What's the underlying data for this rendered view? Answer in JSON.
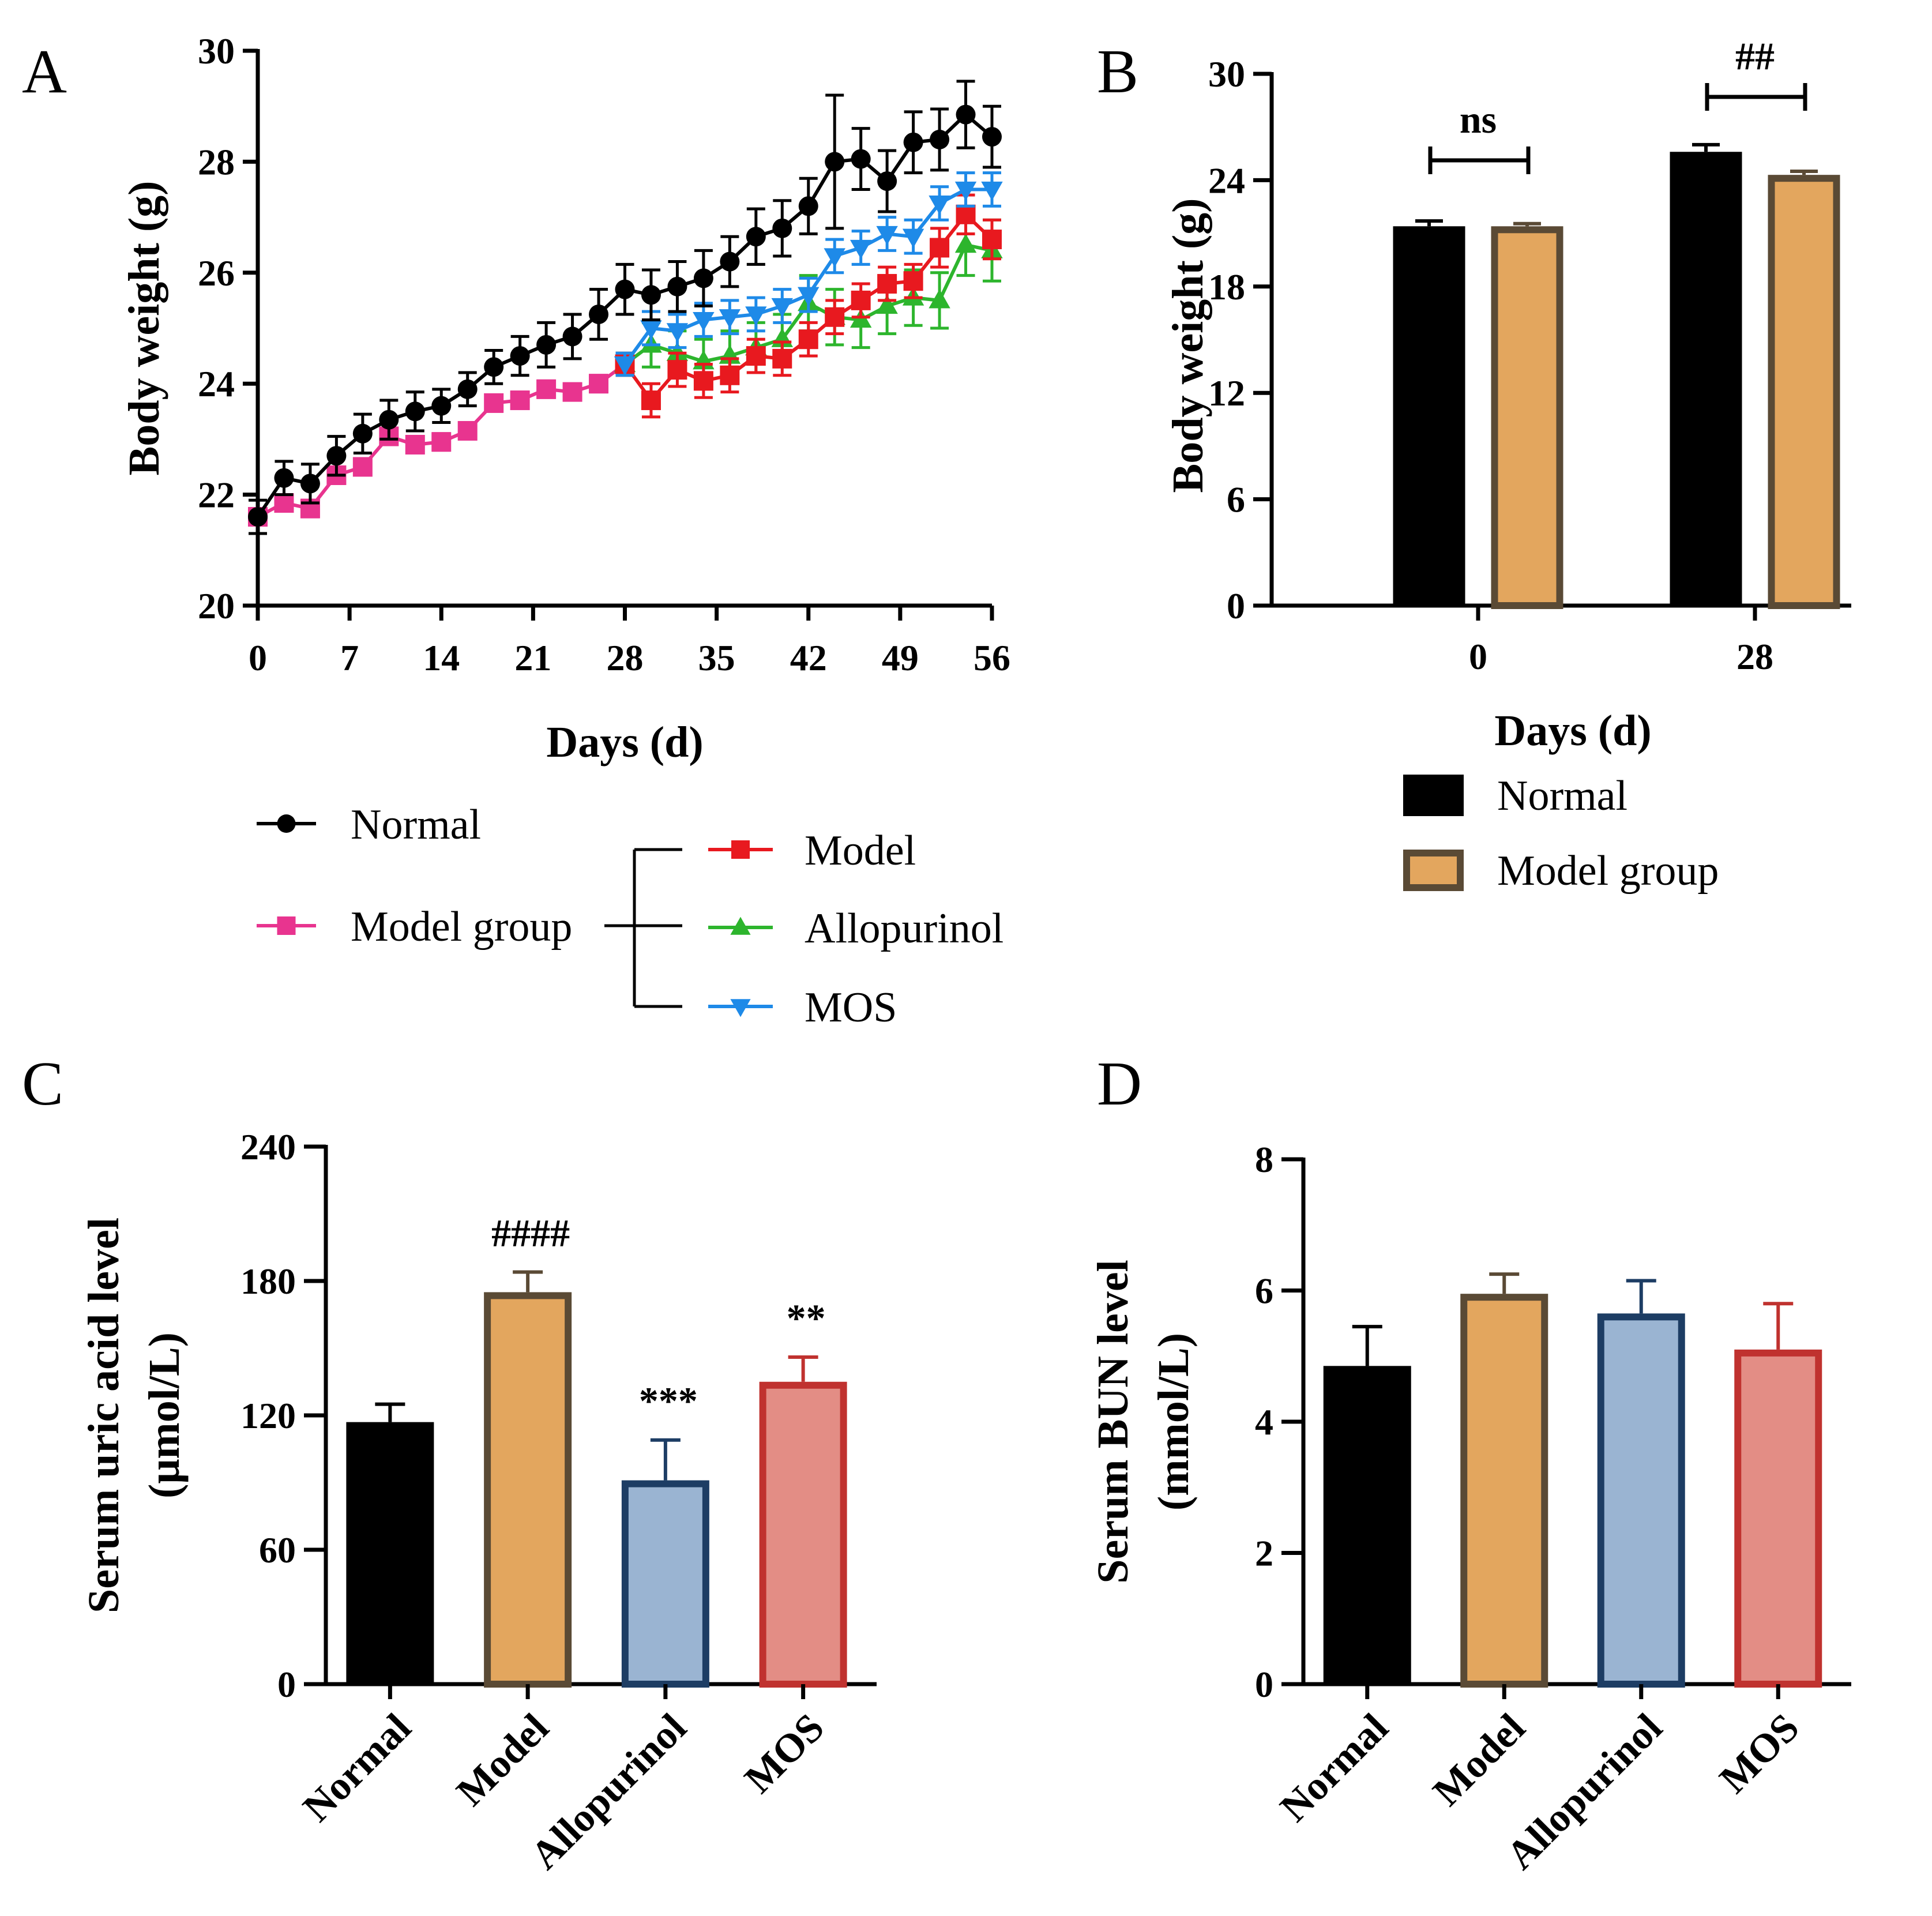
{
  "panels": {
    "A": "A",
    "B": "B",
    "C": "C",
    "D": "D"
  },
  "chart_data": [
    {
      "panel": "A",
      "type": "line",
      "xlabel": "Days (d)",
      "ylabel": "Body weight (g)",
      "xlim": [
        0,
        56
      ],
      "ylim": [
        20,
        30
      ],
      "xticks": [
        0,
        7,
        14,
        21,
        28,
        35,
        42,
        49,
        56
      ],
      "yticks": [
        20,
        22,
        24,
        26,
        28,
        30
      ],
      "series": [
        {
          "name": "Normal",
          "color": "#000000",
          "marker": "circle",
          "x": [
            0,
            2,
            4,
            6,
            8,
            10,
            12,
            14,
            16,
            18,
            20,
            22,
            24,
            26,
            28,
            30,
            32,
            34,
            36,
            38,
            40,
            42,
            44,
            46,
            48,
            50,
            52,
            54,
            56
          ],
          "y": [
            21.6,
            22.3,
            22.2,
            22.7,
            23.1,
            23.35,
            23.5,
            23.6,
            23.9,
            24.3,
            24.5,
            24.7,
            24.85,
            25.25,
            25.7,
            25.6,
            25.75,
            25.9,
            26.2,
            26.65,
            26.8,
            27.2,
            28.0,
            28.05,
            27.65,
            28.35,
            28.4,
            28.85,
            28.45
          ],
          "error": [
            0.3,
            0.3,
            0.35,
            0.35,
            0.35,
            0.35,
            0.35,
            0.3,
            0.3,
            0.3,
            0.35,
            0.4,
            0.4,
            0.45,
            0.45,
            0.45,
            0.45,
            0.5,
            0.45,
            0.5,
            0.5,
            0.5,
            1.2,
            0.55,
            0.55,
            0.55,
            0.55,
            0.6,
            0.55
          ]
        },
        {
          "name": "Model group",
          "color": "#E8348F",
          "marker": "square",
          "x": [
            0,
            2,
            4,
            6,
            8,
            10,
            12,
            14,
            16,
            18,
            20,
            22,
            24,
            26,
            28
          ],
          "y": [
            21.6,
            21.85,
            21.75,
            22.35,
            22.5,
            23.05,
            22.9,
            22.95,
            23.15,
            23.65,
            23.7,
            23.9,
            23.85,
            24.0,
            24.35
          ],
          "error": [
            0.15,
            0.15,
            0.15,
            0.15,
            0.15,
            0.15,
            0.15,
            0.15,
            0.15,
            0.15,
            0.15,
            0.15,
            0.15,
            0.15,
            0.15
          ]
        },
        {
          "name": "Model",
          "color": "#E8191F",
          "marker": "square",
          "x": [
            28,
            30,
            32,
            34,
            36,
            38,
            40,
            42,
            44,
            46,
            48,
            50,
            52,
            54,
            56
          ],
          "y": [
            24.35,
            23.7,
            24.25,
            24.05,
            24.15,
            24.5,
            24.45,
            24.8,
            25.2,
            25.5,
            25.8,
            25.85,
            26.45,
            27.05,
            26.6
          ],
          "error": [
            0.2,
            0.3,
            0.3,
            0.3,
            0.3,
            0.3,
            0.3,
            0.3,
            0.3,
            0.3,
            0.3,
            0.3,
            0.35,
            0.35,
            0.35
          ]
        },
        {
          "name": "Allopurinol",
          "color": "#2DB52D",
          "marker": "triangle-up",
          "x": [
            28,
            30,
            32,
            34,
            36,
            38,
            40,
            42,
            44,
            46,
            48,
            50,
            52,
            54,
            56
          ],
          "y": [
            24.35,
            24.7,
            24.55,
            24.4,
            24.5,
            24.65,
            24.8,
            25.45,
            25.2,
            25.15,
            25.4,
            25.55,
            25.5,
            26.5,
            26.4
          ],
          "error": [
            0.2,
            0.4,
            0.4,
            0.4,
            0.45,
            0.45,
            0.45,
            0.5,
            0.5,
            0.5,
            0.5,
            0.5,
            0.5,
            0.55,
            0.55
          ]
        },
        {
          "name": "MOS",
          "color": "#1E8AE8",
          "marker": "triangle-down",
          "x": [
            28,
            30,
            32,
            34,
            36,
            38,
            40,
            42,
            44,
            46,
            48,
            50,
            52,
            54,
            56
          ],
          "y": [
            24.35,
            25.0,
            24.95,
            25.15,
            25.2,
            25.25,
            25.4,
            25.6,
            26.3,
            26.45,
            26.7,
            26.65,
            27.25,
            27.5,
            27.5
          ],
          "error": [
            0.2,
            0.3,
            0.3,
            0.3,
            0.3,
            0.3,
            0.3,
            0.3,
            0.3,
            0.3,
            0.3,
            0.3,
            0.3,
            0.3,
            0.3
          ]
        }
      ],
      "legend": {
        "normal": "Normal",
        "model_group": "Model group",
        "model": "Model",
        "allopurinol": "Allopurinol",
        "mos": "MOS"
      }
    },
    {
      "panel": "B",
      "type": "bar",
      "xlabel": "Days (d)",
      "ylabel": "Body weight (g)",
      "categories": [
        "0",
        "28"
      ],
      "ylim": [
        0,
        30
      ],
      "yticks": [
        0,
        6,
        12,
        18,
        24,
        30
      ],
      "series": [
        {
          "name": "Normal",
          "fill": "#000000",
          "edge": "#000000",
          "values": [
            21.4,
            25.6
          ],
          "errors": [
            0.3,
            0.4
          ]
        },
        {
          "name": "Model group",
          "fill": "#E3A65E",
          "edge": "#5A4A35",
          "values": [
            21.4,
            24.3
          ],
          "errors": [
            0.15,
            0.2
          ]
        }
      ],
      "annotations": [
        "ns",
        "##"
      ],
      "legend": [
        "Normal",
        "Model group"
      ]
    },
    {
      "panel": "C",
      "type": "bar",
      "ylabel_line1": "Serum uric acid level",
      "ylabel_line2": "(μmol/L)",
      "categories": [
        "Normal",
        "Model",
        "Allopurinol",
        "MOS"
      ],
      "values": [
        117,
        175,
        91,
        135
      ],
      "errors": [
        8,
        9,
        18,
        11
      ],
      "fills": [
        "#000000",
        "#E3A65E",
        "#9AB4D2",
        "#E38D85"
      ],
      "edges": [
        "#000000",
        "#5A4A35",
        "#1D3D64",
        "#C0322F"
      ],
      "ylim": [
        0,
        240
      ],
      "yticks": [
        0,
        60,
        120,
        180,
        240
      ],
      "annotations": [
        "",
        "####",
        "***",
        "**"
      ]
    },
    {
      "panel": "D",
      "type": "bar",
      "ylabel_line1": "Serum BUN level",
      "ylabel_line2": "(mmol/L)",
      "categories": [
        "Normal",
        "Model",
        "Allopurinol",
        "MOS"
      ],
      "values": [
        4.85,
        5.95,
        5.65,
        5.1
      ],
      "errors": [
        0.6,
        0.3,
        0.5,
        0.7
      ],
      "fills": [
        "#000000",
        "#E3A65E",
        "#9AB4D2",
        "#E38D85"
      ],
      "edges": [
        "#000000",
        "#5A4A35",
        "#1D3D64",
        "#C0322F"
      ],
      "ylim": [
        0,
        8
      ],
      "yticks": [
        0,
        2,
        4,
        6,
        8
      ]
    }
  ]
}
